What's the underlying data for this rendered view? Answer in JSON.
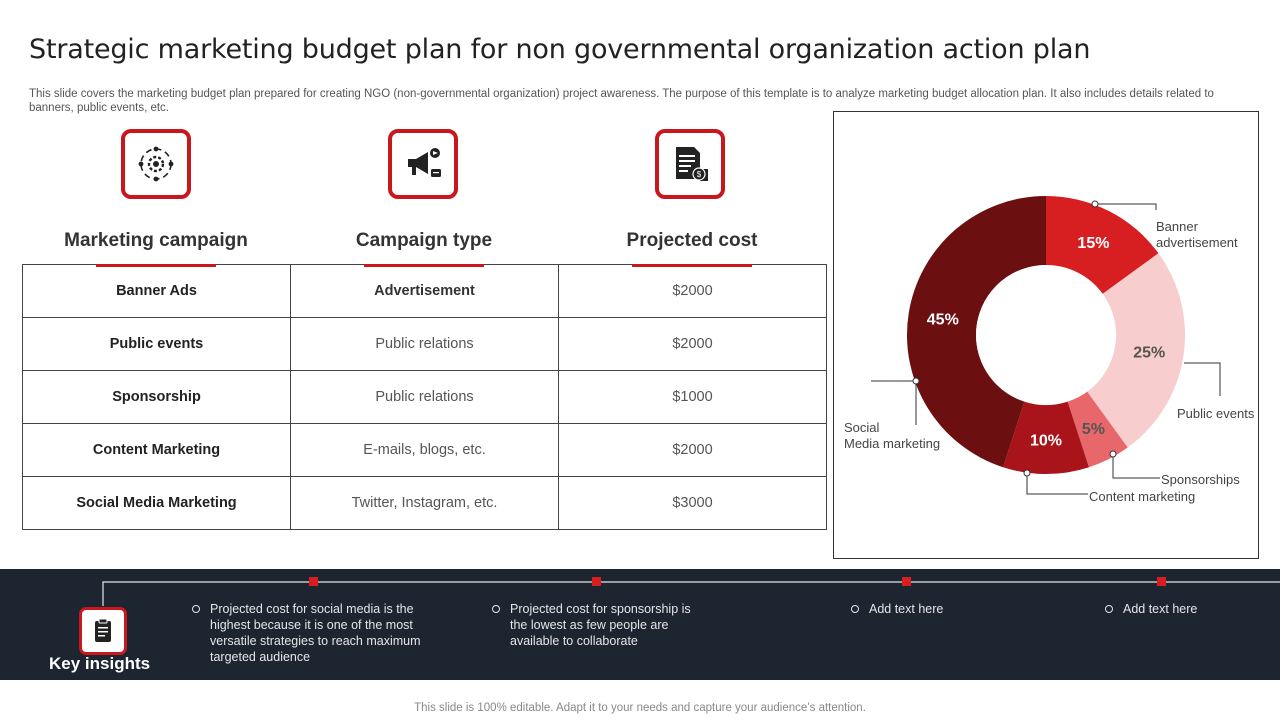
{
  "slide": {
    "title": "Strategic marketing budget plan for non governmental organization action plan",
    "subtitle": "This slide covers the marketing budget plan prepared for creating NGO (non-governmental organization) project awareness. The purpose of this template is to analyze marketing budget allocation plan. It also includes details related to banners, public events, etc."
  },
  "table": {
    "headers": [
      "Marketing campaign",
      "Campaign type",
      "Projected cost"
    ],
    "rows": [
      {
        "campaign": "Banner Ads",
        "type": "Advertisement",
        "cost": "$2000"
      },
      {
        "campaign": "Public events",
        "type": "Public relations",
        "cost": "$2000"
      },
      {
        "campaign": "Sponsorship",
        "type": "Public relations",
        "cost": "$1000"
      },
      {
        "campaign": "Content Marketing",
        "type": "E-mails, blogs, etc.",
        "cost": "$2000"
      },
      {
        "campaign": "Social Media Marketing",
        "type": "Twitter, Instagram, etc.",
        "cost": "$3000"
      }
    ],
    "icons": [
      "marketing-cycle-icon",
      "megaphone-icon",
      "invoice-icon"
    ]
  },
  "chart_data": {
    "type": "pie",
    "donut": true,
    "slices": [
      {
        "name": "Banner advertisement",
        "value": 15,
        "label": "15%",
        "color": "#d71f22"
      },
      {
        "name": "Public events",
        "value": 25,
        "label": "25%",
        "color": "#f7cdcd"
      },
      {
        "name": "Sponsorships",
        "value": 5,
        "label": "5%",
        "color": "#e8676a"
      },
      {
        "name": "Content marketing",
        "value": 10,
        "label": "10%",
        "color": "#a8141a"
      },
      {
        "name": "Social Media marketing",
        "value": 45,
        "label": "45%",
        "color": "#6b0f11"
      }
    ],
    "callouts": {
      "banner": [
        "Banner",
        "advertisement"
      ],
      "public_events": "Public events",
      "sponsorships": "Sponsorships",
      "content": "Content  marketing",
      "social": [
        "Social",
        "Media marketing"
      ]
    }
  },
  "insights": {
    "label": "Key insights",
    "items": [
      "Projected cost for social media is the highest because it is one of the most versatile strategies to reach maximum targeted audience",
      "Projected cost for sponsorship is the lowest as few people are available  to collaborate",
      "Add text here",
      "Add text here"
    ]
  },
  "footer": "This slide is 100% editable. Adapt it to your needs and capture your audience’s attention.",
  "colors": {
    "accent": "#c8171d",
    "band": "#1c2530"
  }
}
